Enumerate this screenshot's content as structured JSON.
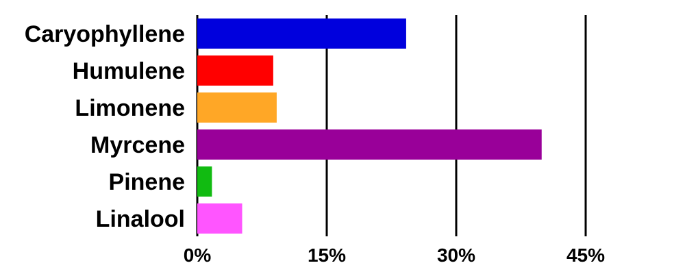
{
  "chart_data": {
    "type": "bar",
    "orientation": "horizontal",
    "categories": [
      "Caryophyllene",
      "Humulene",
      "Limonene",
      "Myrcene",
      "Pinene",
      "Linalool"
    ],
    "values": [
      24.2,
      8.8,
      9.2,
      39.9,
      1.7,
      5.2
    ],
    "colors": [
      "#0000dd",
      "#ff0000",
      "#ffa726",
      "#990099",
      "#11bb11",
      "#ff55ff"
    ],
    "unit": "%",
    "xlim": [
      0,
      55
    ],
    "xticks": [
      0,
      15,
      30,
      45
    ],
    "xtick_labels": [
      "0%",
      "15%",
      "30%",
      "45%"
    ],
    "grid": true,
    "legend": "none"
  }
}
